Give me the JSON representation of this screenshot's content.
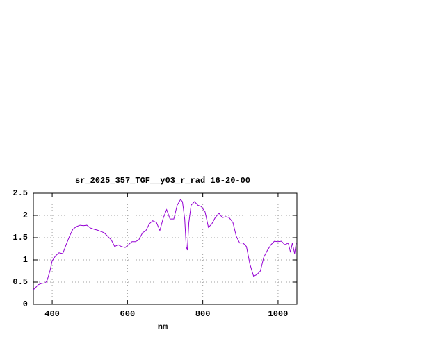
{
  "chart_data": {
    "type": "line",
    "title": "sr_2025_357_TGF__y03_r_rad 16-20-00",
    "x_label": "nm",
    "xlim": [
      350,
      1050
    ],
    "ylim": [
      0,
      2.5
    ],
    "xticks": [
      400,
      600,
      800,
      1000
    ],
    "yticks": [
      0,
      0.5,
      1,
      1.5,
      2,
      2.5
    ],
    "grid": true,
    "series": [
      {
        "color": "#9400d3",
        "x": [
          350,
          354,
          363,
          372,
          382,
          387,
          394,
          400,
          409,
          418,
          428,
          437,
          446,
          455,
          465,
          474,
          483,
          492,
          501,
          511,
          520,
          538,
          557,
          566,
          575,
          584,
          594,
          612,
          621,
          630,
          640,
          649,
          658,
          667,
          677,
          686,
          695,
          704,
          713,
          723,
          732,
          741,
          746,
          752,
          756,
          759,
          763,
          769,
          778,
          787,
          796,
          806,
          815,
          824,
          833,
          843,
          852,
          861,
          870,
          880,
          889,
          898,
          907,
          916,
          925,
          935,
          944,
          953,
          962,
          972,
          981,
          990,
          999,
          1009,
          1018,
          1027,
          1033,
          1038,
          1044,
          1048
        ],
        "values": [
          0.33,
          0.36,
          0.44,
          0.47,
          0.48,
          0.55,
          0.75,
          0.98,
          1.09,
          1.16,
          1.14,
          1.34,
          1.53,
          1.69,
          1.75,
          1.78,
          1.77,
          1.78,
          1.72,
          1.69,
          1.67,
          1.61,
          1.45,
          1.3,
          1.34,
          1.3,
          1.28,
          1.41,
          1.41,
          1.45,
          1.61,
          1.66,
          1.81,
          1.88,
          1.84,
          1.66,
          1.94,
          2.13,
          1.92,
          1.92,
          2.23,
          2.36,
          2.31,
          1.92,
          1.3,
          1.22,
          1.84,
          2.23,
          2.31,
          2.23,
          2.2,
          2.08,
          1.73,
          1.81,
          1.95,
          2.05,
          1.95,
          1.97,
          1.95,
          1.84,
          1.53,
          1.38,
          1.38,
          1.3,
          0.91,
          0.63,
          0.67,
          0.75,
          1.06,
          1.22,
          1.34,
          1.42,
          1.41,
          1.42,
          1.34,
          1.38,
          1.17,
          1.38,
          1.14,
          1.38
        ]
      }
    ]
  }
}
